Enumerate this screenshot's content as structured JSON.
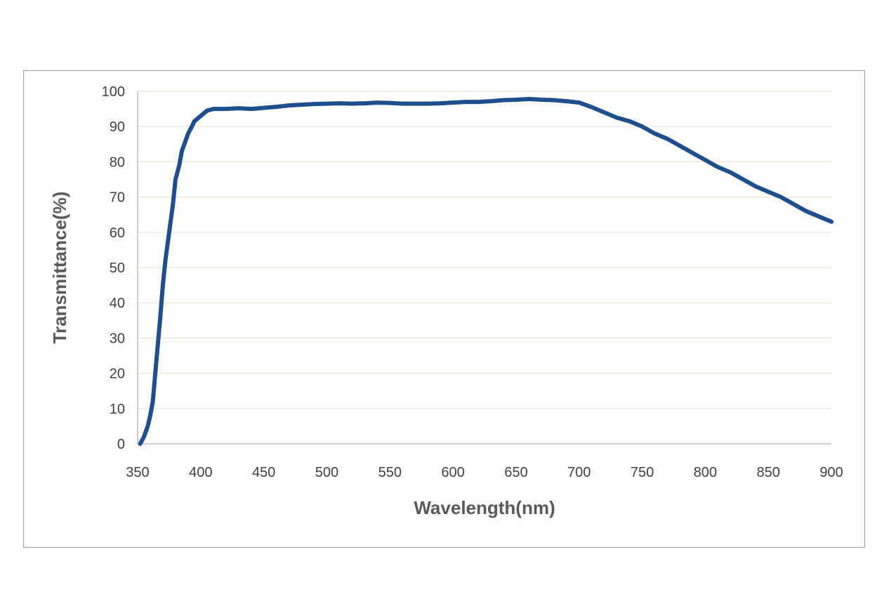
{
  "chart_data": {
    "type": "line",
    "xlabel": "Wavelength(nm)",
    "ylabel": "Transmittance(%)",
    "xlim": [
      350,
      900
    ],
    "ylim": [
      0,
      100
    ],
    "xticks": [
      "350",
      "400",
      "450",
      "500",
      "550",
      "600",
      "650",
      "700",
      "750",
      "800",
      "850",
      "900"
    ],
    "yticks": [
      "0",
      "10",
      "20",
      "30",
      "40",
      "50",
      "60",
      "70",
      "80",
      "90",
      "100"
    ],
    "grid": "horizontal",
    "legend": "none",
    "series": [
      {
        "color": "#1f4e8c",
        "x": [
          352,
          355,
          358,
          360,
          362,
          365,
          368,
          370,
          372,
          375,
          378,
          380,
          383,
          385,
          388,
          390,
          393,
          395,
          400,
          405,
          410,
          420,
          430,
          440,
          450,
          460,
          470,
          480,
          490,
          500,
          510,
          520,
          530,
          540,
          550,
          560,
          570,
          580,
          590,
          600,
          610,
          620,
          630,
          640,
          650,
          660,
          670,
          680,
          690,
          700,
          710,
          720,
          730,
          740,
          750,
          760,
          770,
          780,
          790,
          800,
          810,
          820,
          830,
          840,
          850,
          860,
          870,
          880,
          890,
          900
        ],
        "y": [
          0,
          2,
          5,
          8,
          12,
          24,
          36,
          45,
          52,
          60,
          68,
          75,
          79,
          83,
          86,
          88,
          90,
          91.5,
          93,
          94.5,
          95,
          95,
          95.2,
          95,
          95.3,
          95.6,
          96,
          96.2,
          96.4,
          96.5,
          96.6,
          96.5,
          96.6,
          96.8,
          96.7,
          96.5,
          96.5,
          96.5,
          96.6,
          96.8,
          97,
          97,
          97.2,
          97.5,
          97.6,
          97.8,
          97.6,
          97.5,
          97.2,
          96.8,
          95.5,
          94,
          92.5,
          91.5,
          90,
          88,
          86.5,
          84.5,
          82.5,
          80.5,
          78.5,
          77,
          75,
          73,
          71.5,
          70,
          68,
          66,
          64.5,
          63
        ]
      }
    ]
  }
}
